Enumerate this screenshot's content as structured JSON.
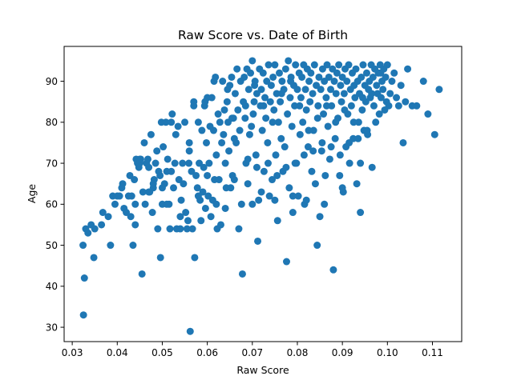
{
  "chart_data": {
    "type": "scatter",
    "title": "Raw Score vs. Date of Birth",
    "xlabel": "Raw Score",
    "ylabel": "Age",
    "xlim": [
      0.0282,
      0.1165
    ],
    "ylim": [
      26.5,
      98.5
    ],
    "xticks": [
      "0.03",
      "0.04",
      "0.05",
      "0.06",
      "0.07",
      "0.08",
      "0.09",
      "0.10",
      "0.11"
    ],
    "xtick_values": [
      0.03,
      0.04,
      0.05,
      0.06,
      0.07,
      0.08,
      0.09,
      0.1,
      0.11
    ],
    "yticks": [
      "30",
      "40",
      "50",
      "60",
      "70",
      "80",
      "90"
    ],
    "ytick_values": [
      30,
      40,
      50,
      60,
      70,
      80,
      90
    ],
    "grid": false,
    "marker_color": "#1f77b4",
    "points": [
      [
        0.0325,
        33
      ],
      [
        0.0327,
        42
      ],
      [
        0.0324,
        50
      ],
      [
        0.033,
        54
      ],
      [
        0.0335,
        53
      ],
      [
        0.0342,
        55
      ],
      [
        0.035,
        54
      ],
      [
        0.0348,
        47
      ],
      [
        0.0365,
        55
      ],
      [
        0.0368,
        58
      ],
      [
        0.038,
        57
      ],
      [
        0.0385,
        50
      ],
      [
        0.039,
        62
      ],
      [
        0.0395,
        60
      ],
      [
        0.04,
        62
      ],
      [
        0.0405,
        62
      ],
      [
        0.041,
        64
      ],
      [
        0.0412,
        65
      ],
      [
        0.0415,
        59
      ],
      [
        0.042,
        58
      ],
      [
        0.0425,
        62
      ],
      [
        0.0428,
        67
      ],
      [
        0.043,
        57
      ],
      [
        0.0432,
        62
      ],
      [
        0.0435,
        50
      ],
      [
        0.0438,
        66
      ],
      [
        0.044,
        60
      ],
      [
        0.0442,
        71
      ],
      [
        0.0445,
        70
      ],
      [
        0.0448,
        69
      ],
      [
        0.045,
        70
      ],
      [
        0.0452,
        71
      ],
      [
        0.0455,
        43
      ],
      [
        0.0457,
        63
      ],
      [
        0.046,
        75
      ],
      [
        0.0462,
        60
      ],
      [
        0.0465,
        70
      ],
      [
        0.0468,
        71
      ],
      [
        0.047,
        69
      ],
      [
        0.0472,
        63
      ],
      [
        0.0475,
        77
      ],
      [
        0.0478,
        58
      ],
      [
        0.048,
        64
      ],
      [
        0.0482,
        66
      ],
      [
        0.0485,
        70
      ],
      [
        0.0488,
        73
      ],
      [
        0.049,
        54
      ],
      [
        0.0492,
        68
      ],
      [
        0.0495,
        67
      ],
      [
        0.0496,
        47
      ],
      [
        0.0498,
        80
      ],
      [
        0.05,
        64
      ],
      [
        0.0502,
        74
      ],
      [
        0.0505,
        65
      ],
      [
        0.0508,
        80
      ],
      [
        0.051,
        68
      ],
      [
        0.0512,
        71
      ],
      [
        0.0515,
        60
      ],
      [
        0.0517,
        54
      ],
      [
        0.052,
        80
      ],
      [
        0.0522,
        82
      ],
      [
        0.0525,
        64
      ],
      [
        0.0528,
        70
      ],
      [
        0.053,
        77
      ],
      [
        0.0532,
        54
      ],
      [
        0.0535,
        79
      ],
      [
        0.0537,
        66
      ],
      [
        0.054,
        54
      ],
      [
        0.0542,
        61
      ],
      [
        0.0545,
        70
      ],
      [
        0.0547,
        65
      ],
      [
        0.055,
        80
      ],
      [
        0.0552,
        58
      ],
      [
        0.0555,
        54
      ],
      [
        0.0557,
        56
      ],
      [
        0.0559,
        70
      ],
      [
        0.056,
        73
      ],
      [
        0.0562,
        29
      ],
      [
        0.0565,
        68
      ],
      [
        0.0567,
        54
      ],
      [
        0.057,
        84
      ],
      [
        0.0572,
        47
      ],
      [
        0.0575,
        67
      ],
      [
        0.0578,
        64
      ],
      [
        0.058,
        80
      ],
      [
        0.0582,
        70
      ],
      [
        0.0584,
        61
      ],
      [
        0.0586,
        56
      ],
      [
        0.0588,
        78
      ],
      [
        0.059,
        63
      ],
      [
        0.0592,
        69
      ],
      [
        0.0594,
        84
      ],
      [
        0.0596,
        59
      ],
      [
        0.0598,
        75
      ],
      [
        0.06,
        86
      ],
      [
        0.0602,
        62
      ],
      [
        0.0604,
        70
      ],
      [
        0.0606,
        79
      ],
      [
        0.0608,
        57
      ],
      [
        0.061,
        86
      ],
      [
        0.0612,
        61
      ],
      [
        0.0614,
        78
      ],
      [
        0.0616,
        66
      ],
      [
        0.0618,
        91
      ],
      [
        0.062,
        72
      ],
      [
        0.0622,
        54
      ],
      [
        0.0624,
        82
      ],
      [
        0.0626,
        66
      ],
      [
        0.0628,
        80
      ],
      [
        0.063,
        55
      ],
      [
        0.0632,
        75
      ],
      [
        0.0634,
        90
      ],
      [
        0.0636,
        77
      ],
      [
        0.0638,
        83
      ],
      [
        0.064,
        70
      ],
      [
        0.0642,
        64
      ],
      [
        0.0644,
        85
      ],
      [
        0.0646,
        80
      ],
      [
        0.0648,
        73
      ],
      [
        0.065,
        89
      ],
      [
        0.0652,
        64
      ],
      [
        0.0654,
        91
      ],
      [
        0.0656,
        67
      ],
      [
        0.0658,
        81
      ],
      [
        0.066,
        66
      ],
      [
        0.0662,
        87
      ],
      [
        0.0664,
        75
      ],
      [
        0.0666,
        93
      ],
      [
        0.0668,
        83
      ],
      [
        0.067,
        54
      ],
      [
        0.0672,
        78
      ],
      [
        0.0674,
        90
      ],
      [
        0.0676,
        60
      ],
      [
        0.0678,
        43
      ],
      [
        0.068,
        85
      ],
      [
        0.0682,
        91
      ],
      [
        0.0684,
        81
      ],
      [
        0.0686,
        70
      ],
      [
        0.0688,
        93
      ],
      [
        0.069,
        65
      ],
      [
        0.0692,
        88
      ],
      [
        0.0694,
        77
      ],
      [
        0.0696,
        92
      ],
      [
        0.0698,
        79
      ],
      [
        0.07,
        95
      ],
      [
        0.0702,
        82
      ],
      [
        0.0704,
        85
      ],
      [
        0.0706,
        90
      ],
      [
        0.0708,
        72
      ],
      [
        0.071,
        87
      ],
      [
        0.0712,
        51
      ],
      [
        0.0714,
        61
      ],
      [
        0.0716,
        93
      ],
      [
        0.0718,
        84
      ],
      [
        0.072,
        88
      ],
      [
        0.0722,
        78
      ],
      [
        0.0724,
        92
      ],
      [
        0.0726,
        68
      ],
      [
        0.0728,
        86
      ],
      [
        0.073,
        81
      ],
      [
        0.0732,
        90
      ],
      [
        0.0734,
        75
      ],
      [
        0.0736,
        94
      ],
      [
        0.0738,
        62
      ],
      [
        0.074,
        85
      ],
      [
        0.0742,
        89
      ],
      [
        0.0744,
        66
      ],
      [
        0.0746,
        91
      ],
      [
        0.0748,
        83
      ],
      [
        0.075,
        94
      ],
      [
        0.0752,
        72
      ],
      [
        0.0754,
        87
      ],
      [
        0.0756,
        56
      ],
      [
        0.0758,
        80
      ],
      [
        0.076,
        92
      ],
      [
        0.0762,
        85
      ],
      [
        0.0764,
        76
      ],
      [
        0.0766,
        90
      ],
      [
        0.0768,
        68
      ],
      [
        0.077,
        88
      ],
      [
        0.0772,
        74
      ],
      [
        0.0774,
        93
      ],
      [
        0.0776,
        46
      ],
      [
        0.0778,
        82
      ],
      [
        0.078,
        95
      ],
      [
        0.0782,
        64
      ],
      [
        0.0784,
        86
      ],
      [
        0.0786,
        91
      ],
      [
        0.0788,
        79
      ],
      [
        0.079,
        58
      ],
      [
        0.0792,
        89
      ],
      [
        0.0794,
        84
      ],
      [
        0.0796,
        94
      ],
      [
        0.0798,
        70
      ],
      [
        0.08,
        88
      ],
      [
        0.0802,
        62
      ],
      [
        0.0804,
        92
      ],
      [
        0.0806,
        77
      ],
      [
        0.0808,
        86
      ],
      [
        0.081,
        91
      ],
      [
        0.0812,
        80
      ],
      [
        0.0814,
        94
      ],
      [
        0.0816,
        60
      ],
      [
        0.0818,
        88
      ],
      [
        0.082,
        83
      ],
      [
        0.0822,
        93
      ],
      [
        0.0824,
        74
      ],
      [
        0.0826,
        90
      ],
      [
        0.0828,
        85
      ],
      [
        0.083,
        92
      ],
      [
        0.0832,
        68
      ],
      [
        0.0834,
        87
      ],
      [
        0.0836,
        78
      ],
      [
        0.0838,
        94
      ],
      [
        0.084,
        65
      ],
      [
        0.0842,
        89
      ],
      [
        0.0844,
        50
      ],
      [
        0.0846,
        84
      ],
      [
        0.0848,
        91
      ],
      [
        0.085,
        57
      ],
      [
        0.0852,
        88
      ],
      [
        0.0854,
        73
      ],
      [
        0.0856,
        93
      ],
      [
        0.0858,
        82
      ],
      [
        0.086,
        90
      ],
      [
        0.0862,
        67
      ],
      [
        0.0864,
        86
      ],
      [
        0.0866,
        94
      ],
      [
        0.0868,
        79
      ],
      [
        0.087,
        91
      ],
      [
        0.0872,
        71
      ],
      [
        0.0874,
        88
      ],
      [
        0.0876,
        84
      ],
      [
        0.0878,
        93
      ],
      [
        0.088,
        44
      ],
      [
        0.0882,
        90
      ],
      [
        0.0884,
        76
      ],
      [
        0.0886,
        87
      ],
      [
        0.0888,
        92
      ],
      [
        0.089,
        81
      ],
      [
        0.0892,
        94
      ],
      [
        0.0894,
        67
      ],
      [
        0.0896,
        89
      ],
      [
        0.0898,
        85
      ],
      [
        0.09,
        91
      ],
      [
        0.0902,
        63
      ],
      [
        0.0904,
        87
      ],
      [
        0.0906,
        93
      ],
      [
        0.0908,
        74
      ],
      [
        0.091,
        90
      ],
      [
        0.0912,
        82
      ],
      [
        0.0914,
        94
      ],
      [
        0.0916,
        70
      ],
      [
        0.0918,
        88
      ],
      [
        0.092,
        84
      ],
      [
        0.0922,
        92
      ],
      [
        0.0924,
        76
      ],
      [
        0.0926,
        89
      ],
      [
        0.0928,
        86
      ],
      [
        0.093,
        93
      ],
      [
        0.0932,
        65
      ],
      [
        0.0934,
        90
      ],
      [
        0.0936,
        80
      ],
      [
        0.0938,
        87
      ],
      [
        0.094,
        58
      ],
      [
        0.0942,
        91
      ],
      [
        0.0944,
        83
      ],
      [
        0.0946,
        94
      ],
      [
        0.0948,
        78
      ],
      [
        0.095,
        89
      ],
      [
        0.0952,
        85
      ],
      [
        0.0954,
        92
      ],
      [
        0.0956,
        77
      ],
      [
        0.0958,
        88
      ],
      [
        0.096,
        90
      ],
      [
        0.0962,
        86
      ],
      [
        0.0964,
        94
      ],
      [
        0.0966,
        69
      ],
      [
        0.0968,
        91
      ],
      [
        0.097,
        84
      ],
      [
        0.0972,
        93
      ],
      [
        0.0974,
        80
      ],
      [
        0.0976,
        89
      ],
      [
        0.0978,
        87
      ],
      [
        0.098,
        92
      ],
      [
        0.0982,
        82
      ],
      [
        0.0984,
        94
      ],
      [
        0.0986,
        86
      ],
      [
        0.0988,
        90
      ],
      [
        0.099,
        88
      ],
      [
        0.0992,
        93
      ],
      [
        0.0994,
        83
      ],
      [
        0.0996,
        91
      ],
      [
        0.0998,
        85
      ],
      [
        0.1,
        94
      ],
      [
        0.1003,
        84
      ],
      [
        0.1006,
        87
      ],
      [
        0.101,
        90
      ],
      [
        0.1015,
        92
      ],
      [
        0.102,
        86
      ],
      [
        0.1025,
        84
      ],
      [
        0.103,
        89
      ],
      [
        0.1035,
        75
      ],
      [
        0.104,
        85
      ],
      [
        0.1045,
        93
      ],
      [
        0.1055,
        84
      ],
      [
        0.1065,
        84
      ],
      [
        0.108,
        90
      ],
      [
        0.109,
        82
      ],
      [
        0.1105,
        77
      ],
      [
        0.1115,
        88
      ],
      [
        0.057,
        85
      ],
      [
        0.0595,
        85
      ],
      [
        0.0615,
        90
      ],
      [
        0.0645,
        88
      ],
      [
        0.0655,
        81
      ],
      [
        0.0685,
        84
      ],
      [
        0.0705,
        89
      ],
      [
        0.0725,
        84
      ],
      [
        0.0745,
        80
      ],
      [
        0.0765,
        87
      ],
      [
        0.0785,
        90
      ],
      [
        0.0805,
        84
      ],
      [
        0.0825,
        78
      ],
      [
        0.0845,
        81
      ],
      [
        0.0865,
        84
      ],
      [
        0.0885,
        80
      ],
      [
        0.0905,
        83
      ],
      [
        0.0925,
        80
      ],
      [
        0.0945,
        86
      ],
      [
        0.0965,
        87
      ],
      [
        0.0985,
        92
      ],
      [
        0.066,
        76
      ],
      [
        0.069,
        71
      ],
      [
        0.071,
        69
      ],
      [
        0.0735,
        70
      ],
      [
        0.0755,
        67
      ],
      [
        0.0775,
        69
      ],
      [
        0.0795,
        70
      ],
      [
        0.0815,
        72
      ],
      [
        0.0835,
        73
      ],
      [
        0.0855,
        75
      ],
      [
        0.0875,
        74
      ],
      [
        0.0895,
        72
      ],
      [
        0.0915,
        75
      ],
      [
        0.0935,
        76
      ],
      [
        0.0955,
        78
      ],
      [
        0.07,
        60
      ],
      [
        0.072,
        63
      ],
      [
        0.075,
        61
      ],
      [
        0.079,
        62
      ],
      [
        0.082,
        61
      ],
      [
        0.086,
        60
      ],
      [
        0.09,
        64
      ],
      [
        0.094,
        70
      ],
      [
        0.045,
        71
      ],
      [
        0.048,
        65
      ],
      [
        0.051,
        60
      ],
      [
        0.054,
        57
      ],
      [
        0.058,
        62
      ],
      [
        0.062,
        60
      ],
      [
        0.064,
        59
      ],
      [
        0.06,
        67
      ],
      [
        0.052,
        68
      ],
      [
        0.056,
        75
      ],
      [
        0.05,
        60
      ],
      [
        0.047,
        63
      ],
      [
        0.044,
        55
      ]
    ]
  }
}
